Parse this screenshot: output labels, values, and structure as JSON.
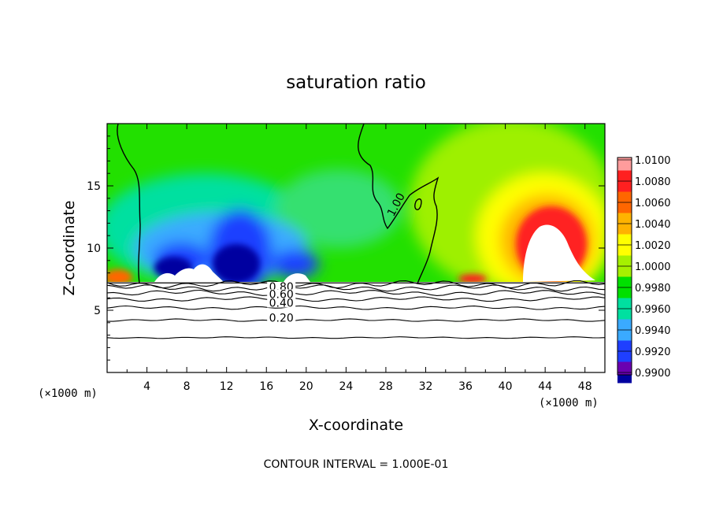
{
  "chart_data": {
    "type": "heatmap",
    "title": "saturation ratio",
    "xlabel": "X-coordinate",
    "ylabel": "Z-coordinate",
    "x_unit": "(×1000 m)",
    "x_ticks": [
      4,
      8,
      12,
      16,
      20,
      24,
      28,
      32,
      36,
      40,
      44,
      48
    ],
    "y_ticks": [
      5,
      10,
      15
    ],
    "xlim": [
      0,
      50
    ],
    "ylim": [
      0,
      20
    ],
    "footer": "CONTOUR INTERVAL = 1.000E-01",
    "colorbar": {
      "levels": [
        "1.0100",
        "1.0080",
        "1.0060",
        "1.0040",
        "1.0020",
        "1.0000",
        "0.9980",
        "0.9960",
        "0.9940",
        "0.9920",
        "0.9900"
      ],
      "colors": [
        "#ff9c9c",
        "#ff2020",
        "#ff6600",
        "#ffb300",
        "#ffff00",
        "#a6f000",
        "#00e000",
        "#00e0a0",
        "#3aaaff",
        "#1f3fff",
        "#0000a0",
        "#6a00b0"
      ]
    },
    "contour_labels": [
      {
        "text": "1.00",
        "x": 29,
        "z": 13.5
      },
      {
        "text": "0.80",
        "x": 17.5,
        "z": 6.9
      },
      {
        "text": "0.60",
        "x": 17.5,
        "z": 6.3
      },
      {
        "text": "0.40",
        "x": 17.5,
        "z": 5.6
      },
      {
        "text": "0.20",
        "x": 17.5,
        "z": 4.4
      }
    ],
    "cloud_base_z": 7.2,
    "low_contours_z": [
      2.8,
      4.2,
      5.2,
      5.9,
      6.4,
      6.8,
      7.1
    ]
  }
}
